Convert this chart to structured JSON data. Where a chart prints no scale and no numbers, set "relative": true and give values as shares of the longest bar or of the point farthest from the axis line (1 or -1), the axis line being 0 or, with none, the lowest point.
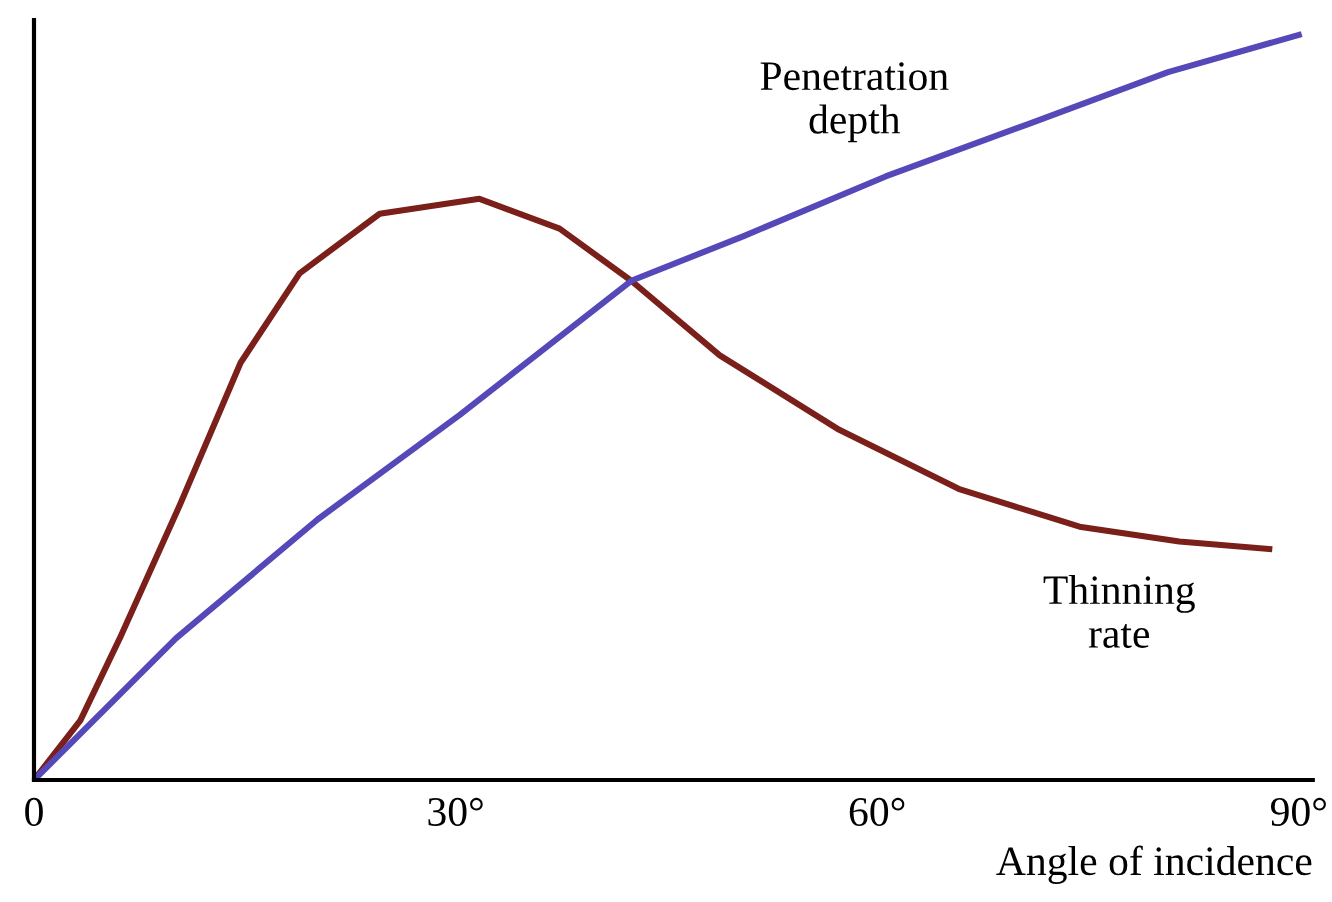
{
  "chart_data": {
    "type": "line",
    "relative": true,
    "xlabel": "Angle of incidence",
    "xlim": [
      0,
      91
    ],
    "xticks": [
      0,
      {
        "value": 30,
        "label": "30°"
      },
      {
        "value": 60,
        "label": "60°"
      },
      {
        "value": 90,
        "label": "90°"
      }
    ],
    "grid": false,
    "legend": false,
    "marker": "none",
    "line_style": "solid",
    "series": [
      {
        "name": "Thinning\nrate",
        "color": "#7a1f1a",
        "x": [
          0,
          3.3,
          6.1,
          10.4,
          14.7,
          18.9,
          24.6,
          31.7,
          37.4,
          42.5,
          48.8,
          57.3,
          65.9,
          74.4,
          81.5,
          87.9
        ],
        "values": [
          0,
          0.08,
          0.19,
          0.37,
          0.56,
          0.68,
          0.76,
          0.78,
          0.74,
          0.67,
          0.57,
          0.47,
          0.39,
          0.34,
          0.32,
          0.31
        ]
      },
      {
        "name": "Penetration\ndepth",
        "color": "#5548b8",
        "x": [
          0,
          10.1,
          20.2,
          30.3,
          42.5,
          50.5,
          60.6,
          70.7,
          80.7,
          90
        ],
        "values": [
          0,
          0.19,
          0.35,
          0.49,
          0.67,
          0.73,
          0.81,
          0.88,
          0.95,
          1.0
        ]
      }
    ]
  }
}
